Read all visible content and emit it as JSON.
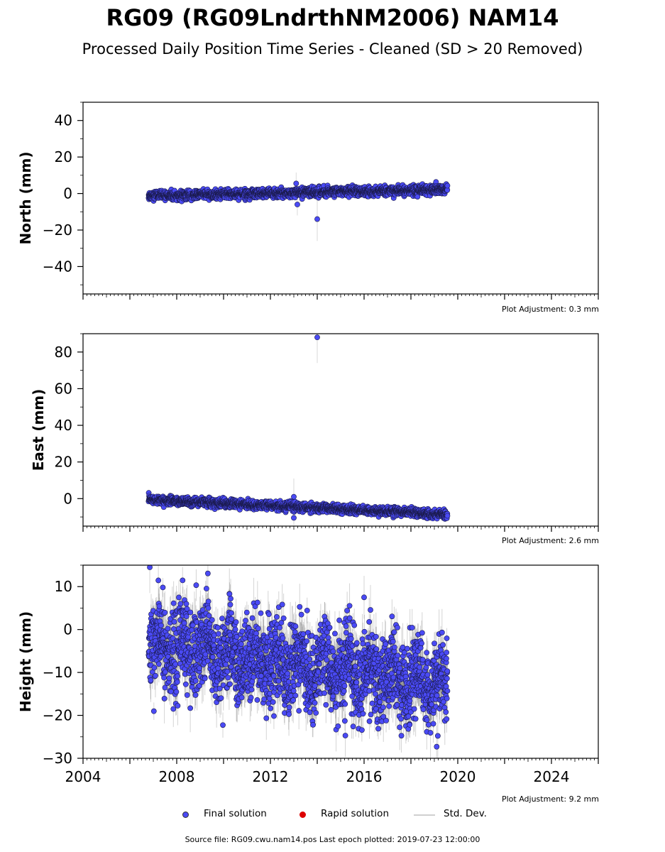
{
  "title": "RG09 (RG09LndrthNM2006) NAM14",
  "subtitle": "Processed Daily Position Time Series - Cleaned (SD > 20 Removed)",
  "source": "Source file: RG09.cwu.nam14.pos  Last epoch plotted: 2019-07-23 12:00:00",
  "legend": {
    "final": "Final solution",
    "rapid": "Rapid solution",
    "std": "Std. Dev."
  },
  "colors": {
    "final": "#4a4af5",
    "rapid": "#dd0000",
    "std": "#cccccc",
    "stdDense": "#555555"
  },
  "chart_data": [
    {
      "type": "scatter",
      "ylabel": "North (mm)",
      "ylim": [
        -55,
        50
      ],
      "xlim": [
        2004,
        2026
      ],
      "yticks": [
        -40,
        -20,
        0,
        20,
        40
      ],
      "xticklabels": false,
      "adjustment": "Plot Adjustment: 0.3 mm",
      "series_summary": {
        "x_start": 2006.8,
        "x_end": 2019.56,
        "trend_start": -1.2,
        "trend_end": 2.2,
        "scatter_sd": 1.2,
        "sigma": 1.2
      },
      "outliers": [
        {
          "x": 2013.1,
          "y": 5.5,
          "sd": 6
        },
        {
          "x": 2013.15,
          "y": -6,
          "sd": 6
        },
        {
          "x": 2014.0,
          "y": -14,
          "sd": 12
        }
      ]
    },
    {
      "type": "scatter",
      "ylabel": "East (mm)",
      "ylim": [
        -15,
        90
      ],
      "xlim": [
        2004,
        2026
      ],
      "yticks": [
        0,
        20,
        40,
        60,
        80
      ],
      "xticklabels": false,
      "adjustment": "Plot Adjustment: 2.6 mm",
      "series_summary": {
        "x_start": 2006.8,
        "x_end": 2019.56,
        "trend_start": -0.5,
        "trend_end": -8.6,
        "scatter_sd": 1.1,
        "sigma": 1.2
      },
      "outliers": [
        {
          "x": 2014.0,
          "y": 88,
          "sd": 14
        },
        {
          "x": 2013.0,
          "y": 1,
          "sd": 10
        },
        {
          "x": 2013.0,
          "y": -10.5,
          "sd": 4
        }
      ]
    },
    {
      "type": "scatter",
      "ylabel": "Height (mm)",
      "ylim": [
        -30,
        15
      ],
      "xlim": [
        2004,
        2026
      ],
      "yticks": [
        -30,
        -20,
        -10,
        0,
        10
      ],
      "xticks": [
        2004,
        2008,
        2012,
        2016,
        2020,
        2024
      ],
      "xticklabels": true,
      "adjustment": "Plot Adjustment: 9.2 mm",
      "series_summary": {
        "x_start": 2006.8,
        "x_end": 2019.56,
        "trend_start": -3.0,
        "trend_end": -13.0,
        "scatter_sd": 4.8,
        "sigma": 4.0,
        "seasonal_amplitude": 2.5
      },
      "outliers": [
        {
          "x": 2006.85,
          "y": 14.5,
          "sd": 6
        },
        {
          "x": 2011.45,
          "y": 6.3,
          "sd": 5
        },
        {
          "x": 2016.0,
          "y": 7.5,
          "sd": 5
        },
        {
          "x": 2015.2,
          "y": -24.7,
          "sd": 5
        },
        {
          "x": 2019.1,
          "y": -27.3,
          "sd": 5
        }
      ]
    }
  ]
}
